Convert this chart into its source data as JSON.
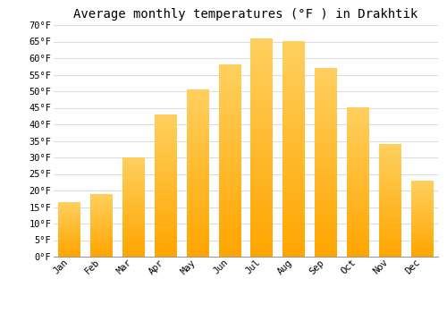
{
  "title": "Average monthly temperatures (°F ) in Drakhtik",
  "months": [
    "Jan",
    "Feb",
    "Mar",
    "Apr",
    "May",
    "Jun",
    "Jul",
    "Aug",
    "Sep",
    "Oct",
    "Nov",
    "Dec"
  ],
  "values": [
    16.5,
    19.0,
    30.0,
    43.0,
    50.5,
    58.0,
    66.0,
    65.0,
    57.0,
    45.0,
    34.0,
    23.0
  ],
  "bar_color_top": "#FFD060",
  "bar_color_bottom": "#FFA500",
  "background_color": "#FFFFFF",
  "grid_color": "#CCCCCC",
  "ylim": [
    0,
    70
  ],
  "yticks": [
    0,
    5,
    10,
    15,
    20,
    25,
    30,
    35,
    40,
    45,
    50,
    55,
    60,
    65,
    70
  ],
  "ytick_labels": [
    "0°F",
    "5°F",
    "10°F",
    "15°F",
    "20°F",
    "25°F",
    "30°F",
    "35°F",
    "40°F",
    "45°F",
    "50°F",
    "55°F",
    "60°F",
    "65°F",
    "70°F"
  ],
  "title_fontsize": 10,
  "tick_fontsize": 7.5,
  "font_family": "monospace"
}
